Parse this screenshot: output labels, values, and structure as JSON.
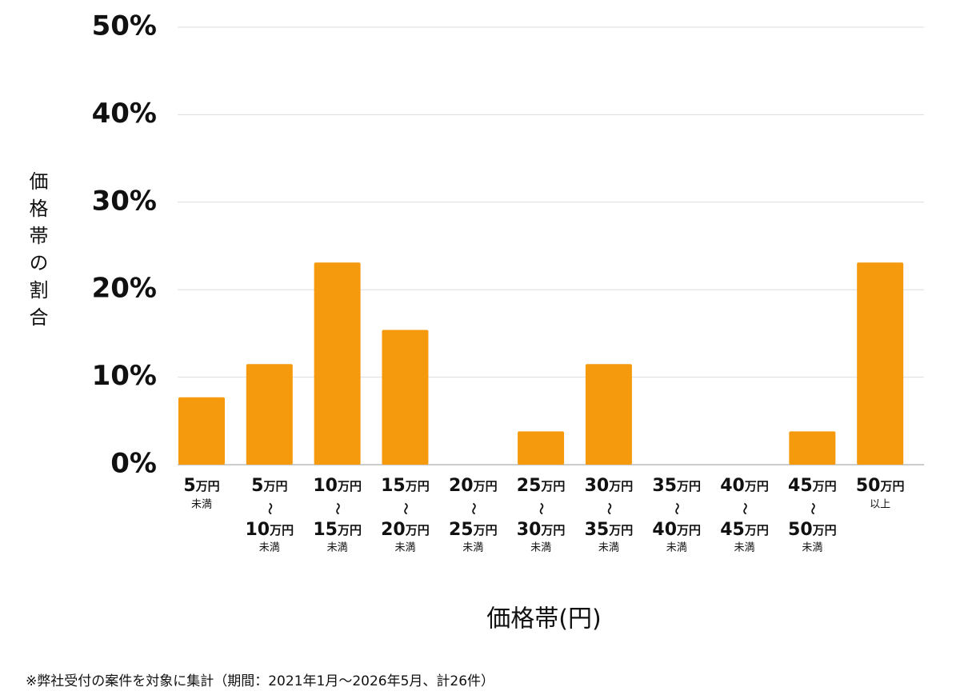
{
  "chart_data": {
    "type": "bar",
    "y_label": "価格帯の割合",
    "x_label": "価格帯(円)",
    "note": "※弊社受付の案件を対象に集計（期間：2021年1月～2026年5月、計26件）",
    "categories": [
      [
        "5万円",
        "未満"
      ],
      [
        "5万円",
        "～",
        "10万円",
        "未満"
      ],
      [
        "10万円",
        "～",
        "15万円",
        "未満"
      ],
      [
        "15万円",
        "～",
        "20万円",
        "未満"
      ],
      [
        "20万円",
        "～",
        "25万円",
        "未満"
      ],
      [
        "25万円",
        "～",
        "30万円",
        "未満"
      ],
      [
        "30万円",
        "～",
        "35万円",
        "未満"
      ],
      [
        "35万円",
        "～",
        "40万円",
        "未満"
      ],
      [
        "40万円",
        "～",
        "45万円",
        "未満"
      ],
      [
        "45万円",
        "～",
        "50万円",
        "未満"
      ],
      [
        "50万円",
        "以上"
      ]
    ],
    "values": [
      7.7,
      11.5,
      23.1,
      15.4,
      0,
      3.8,
      11.5,
      0,
      0,
      3.8,
      23.1
    ],
    "color": "#f59a0c",
    "ylim": [
      0,
      50
    ],
    "yticks": [
      {
        "value": 0,
        "label": "0%"
      },
      {
        "value": 10,
        "label": "10%"
      },
      {
        "value": 20,
        "label": "20%"
      },
      {
        "value": 30,
        "label": "30%"
      },
      {
        "value": 40,
        "label": "40%"
      },
      {
        "value": 50,
        "label": "50%"
      }
    ],
    "grid": true
  }
}
